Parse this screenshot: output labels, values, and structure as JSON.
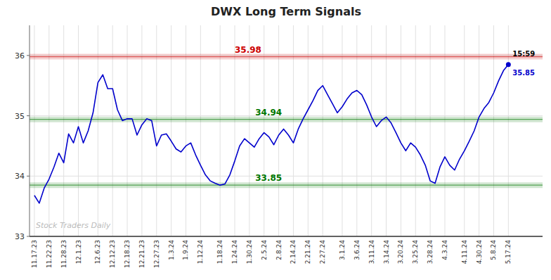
{
  "chart_data": {
    "type": "line",
    "title": "DWX Long Term Signals",
    "categories": [
      "11.17.23",
      null,
      null,
      "11.22.23",
      null,
      null,
      "11.28.23",
      null,
      null,
      "12.1.23",
      null,
      null,
      null,
      "12.6.23",
      null,
      null,
      "12.12.23",
      null,
      null,
      "12.18.23",
      null,
      null,
      "12.21.23",
      null,
      null,
      "12.27.23",
      null,
      null,
      "1.3.24",
      null,
      null,
      "1.9.24",
      null,
      null,
      "1.12.24",
      null,
      null,
      null,
      "1.18.24",
      null,
      null,
      "1.24.24",
      null,
      null,
      "1.30.24",
      null,
      null,
      "2.5.24",
      null,
      null,
      "2.8.24",
      null,
      null,
      "2.14.24",
      null,
      null,
      "2.21.24",
      null,
      null,
      "2.27.24",
      null,
      null,
      null,
      "3.1.24",
      null,
      null,
      "3.6.24",
      null,
      null,
      "3.11.24",
      null,
      null,
      "3.14.24",
      null,
      null,
      "3.20.24",
      null,
      null,
      "3.25.24",
      null,
      null,
      "3.28.24",
      null,
      null,
      "4.3.24",
      null,
      null,
      null,
      "4.11.24",
      null,
      null,
      "4.30.24",
      null,
      null,
      "5.8.24",
      null,
      null,
      "5.17.24"
    ],
    "values": [
      33.68,
      33.55,
      33.8,
      33.95,
      34.15,
      34.38,
      34.22,
      34.7,
      34.55,
      34.82,
      34.55,
      34.75,
      35.05,
      35.55,
      35.68,
      35.45,
      35.45,
      35.1,
      34.92,
      34.95,
      34.95,
      34.68,
      34.85,
      34.95,
      34.92,
      34.5,
      34.68,
      34.7,
      34.58,
      34.45,
      34.4,
      34.5,
      34.55,
      34.35,
      34.18,
      34.02,
      33.92,
      33.88,
      33.85,
      33.87,
      34.02,
      34.25,
      34.5,
      34.62,
      34.55,
      34.48,
      34.62,
      34.72,
      34.65,
      34.52,
      34.68,
      34.78,
      34.68,
      34.55,
      34.78,
      34.95,
      35.1,
      35.25,
      35.42,
      35.5,
      35.35,
      35.2,
      35.05,
      35.15,
      35.28,
      35.38,
      35.42,
      35.35,
      35.18,
      34.98,
      34.82,
      34.92,
      34.98,
      34.88,
      34.72,
      34.55,
      34.42,
      34.55,
      34.48,
      34.35,
      34.18,
      33.92,
      33.88,
      34.15,
      34.32,
      34.18,
      34.1,
      34.28,
      34.42,
      34.58,
      34.75,
      34.98,
      35.12,
      35.22,
      35.38,
      35.58,
      35.75,
      35.85
    ],
    "color": "#0000cc",
    "ylim": [
      33.0,
      36.5
    ],
    "yticks": [
      33,
      34,
      35,
      36
    ],
    "grid": true,
    "reference_lines": [
      {
        "value": 35.98,
        "color": "#cc0000"
      },
      {
        "value": 34.94,
        "color": "#007700"
      },
      {
        "value": 33.85,
        "color": "#007700"
      }
    ],
    "last_point": {
      "value": 35.85,
      "time": "15:59"
    },
    "watermark": "Stock Traders Daily"
  }
}
